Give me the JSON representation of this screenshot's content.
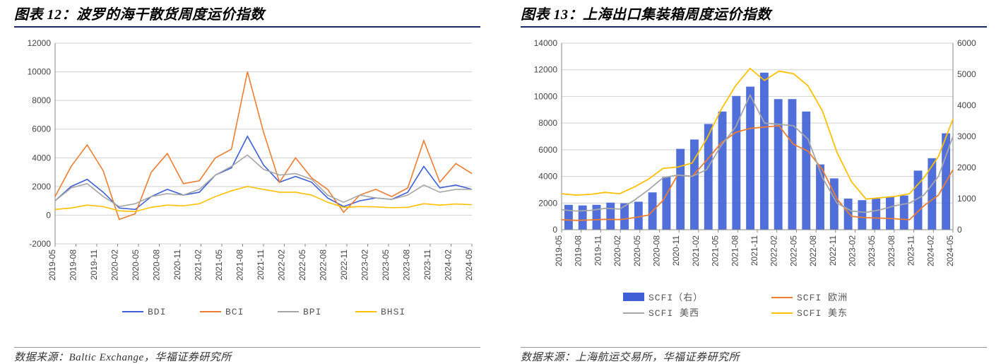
{
  "left_panel": {
    "title": "图表 12：波罗的海干散货周度运价指数",
    "footer": "数据来源：Baltic Exchange，华福证券研究所",
    "chart": {
      "type": "line",
      "background_color": "#ffffff",
      "grid_color": "#d0d0d0",
      "axis_color": "#888888",
      "x_labels": [
        "2019-05",
        "2019-08",
        "2019-11",
        "2020-02",
        "2020-05",
        "2020-08",
        "2020-11",
        "2021-02",
        "2021-05",
        "2021-08",
        "2021-11",
        "2022-02",
        "2022-05",
        "2022-08",
        "2022-11",
        "2023-02",
        "2023-05",
        "2023-08",
        "2023-11",
        "2024-02",
        "2024-05"
      ],
      "ylim": [
        -2000,
        12000
      ],
      "ytick_step": 2000,
      "label_fontsize": 12,
      "line_width": 1.6,
      "series": [
        {
          "name": "BDI",
          "color": "#3e5fd6",
          "values": [
            1000,
            2000,
            2500,
            1600,
            500,
            400,
            1300,
            1800,
            1400,
            1600,
            2800,
            3300,
            5500,
            3500,
            2300,
            2700,
            2300,
            1200,
            600,
            1000,
            1200,
            1100,
            1600,
            3400,
            1900,
            2100,
            1800
          ]
        },
        {
          "name": "BCI",
          "color": "#ed7d31",
          "values": [
            1300,
            3400,
            4900,
            3100,
            -300,
            100,
            3000,
            4300,
            2200,
            2400,
            4000,
            4600,
            10000,
            5800,
            2300,
            4000,
            2600,
            1800,
            200,
            1400,
            1800,
            1300,
            1900,
            5200,
            2300,
            3600,
            2900
          ]
        },
        {
          "name": "BPI",
          "color": "#a6a6a6",
          "values": [
            1000,
            1900,
            2200,
            1300,
            600,
            800,
            1300,
            1500,
            1400,
            1800,
            2800,
            3400,
            4200,
            3200,
            2800,
            2900,
            2500,
            1400,
            900,
            1400,
            1200,
            1100,
            1400,
            2100,
            1600,
            1800,
            1800
          ]
        },
        {
          "name": "BHSI",
          "color": "#ffc000",
          "values": [
            400,
            500,
            700,
            600,
            300,
            250,
            550,
            700,
            650,
            800,
            1300,
            1700,
            2000,
            1800,
            1600,
            1600,
            1400,
            900,
            550,
            600,
            580,
            520,
            550,
            800,
            700,
            780,
            730
          ]
        }
      ],
      "legend": [
        {
          "label": "BDI",
          "color": "#3e5fd6"
        },
        {
          "label": "BCI",
          "color": "#ed7d31"
        },
        {
          "label": "BPI",
          "color": "#a6a6a6"
        },
        {
          "label": "BHSI",
          "color": "#ffc000"
        }
      ]
    }
  },
  "right_panel": {
    "title": "图表 13：上海出口集装箱周度运价指数",
    "footer": "数据来源：上海航运交易所，华福证券研究所",
    "chart": {
      "type": "line+bar",
      "background_color": "#ffffff",
      "grid_color": "#d0d0d0",
      "axis_color": "#888888",
      "x_labels": [
        "2019-05",
        "2019-08",
        "2019-11",
        "2020-02",
        "2020-05",
        "2020-08",
        "2020-11",
        "2021-02",
        "2021-05",
        "2021-08",
        "2021-11",
        "2022-02",
        "2022-05",
        "2022-08",
        "2022-11",
        "2023-02",
        "2023-05",
        "2023-08",
        "2023-11",
        "2024-02",
        "2024-05"
      ],
      "ylim": [
        0,
        14000
      ],
      "ytick_step": 2000,
      "y2lim": [
        0,
        6000
      ],
      "y2tick_step": 1000,
      "label_fontsize": 12,
      "line_width": 1.8,
      "bar_series": {
        "name": "SCFI（右）",
        "color": "#3e5fd6",
        "axis": "right",
        "values": [
          800,
          780,
          800,
          870,
          850,
          900,
          1200,
          1700,
          2600,
          2900,
          3400,
          3800,
          4300,
          4600,
          5050,
          4200,
          4200,
          3800,
          2100,
          1650,
          1000,
          950,
          1000,
          1050,
          1100,
          1900,
          2300,
          3100
        ]
      },
      "line_series": [
        {
          "name": "SCFI 欧洲",
          "color": "#ed7d31",
          "axis": "left",
          "values": [
            750,
            700,
            730,
            780,
            760,
            900,
            1100,
            2200,
            4100,
            4000,
            5200,
            6500,
            7300,
            7600,
            7700,
            7800,
            6400,
            5900,
            4500,
            2300,
            1000,
            900,
            870,
            820,
            750,
            1800,
            2600,
            4500
          ]
        },
        {
          "name": "SCFI 美西",
          "color": "#a6a6a6",
          "axis": "left",
          "values": [
            1500,
            1400,
            1450,
            1600,
            1550,
            2200,
            3000,
            3900,
            4100,
            4000,
            4500,
            6300,
            7700,
            10100,
            8000,
            7900,
            7800,
            6800,
            3900,
            2000,
            1400,
            1300,
            1500,
            1800,
            2000,
            2600,
            4000,
            7000
          ]
        },
        {
          "name": "SCFI 美东",
          "color": "#ffc000",
          "axis": "left",
          "values": [
            2700,
            2600,
            2650,
            2800,
            2700,
            3200,
            3800,
            4600,
            4700,
            5000,
            6800,
            9000,
            10800,
            12100,
            11200,
            11900,
            11700,
            10800,
            8900,
            5800,
            3600,
            2300,
            2400,
            2500,
            2700,
            3900,
            5500,
            8300
          ]
        }
      ],
      "legend": [
        {
          "label": "SCFI（右）",
          "color": "#3e5fd6",
          "type": "bar"
        },
        {
          "label": "SCFI 欧洲",
          "color": "#ed7d31",
          "type": "line"
        },
        {
          "label": "SCFI 美西",
          "color": "#a6a6a6",
          "type": "line"
        },
        {
          "label": "SCFI 美东",
          "color": "#ffc000",
          "type": "line"
        }
      ]
    }
  }
}
